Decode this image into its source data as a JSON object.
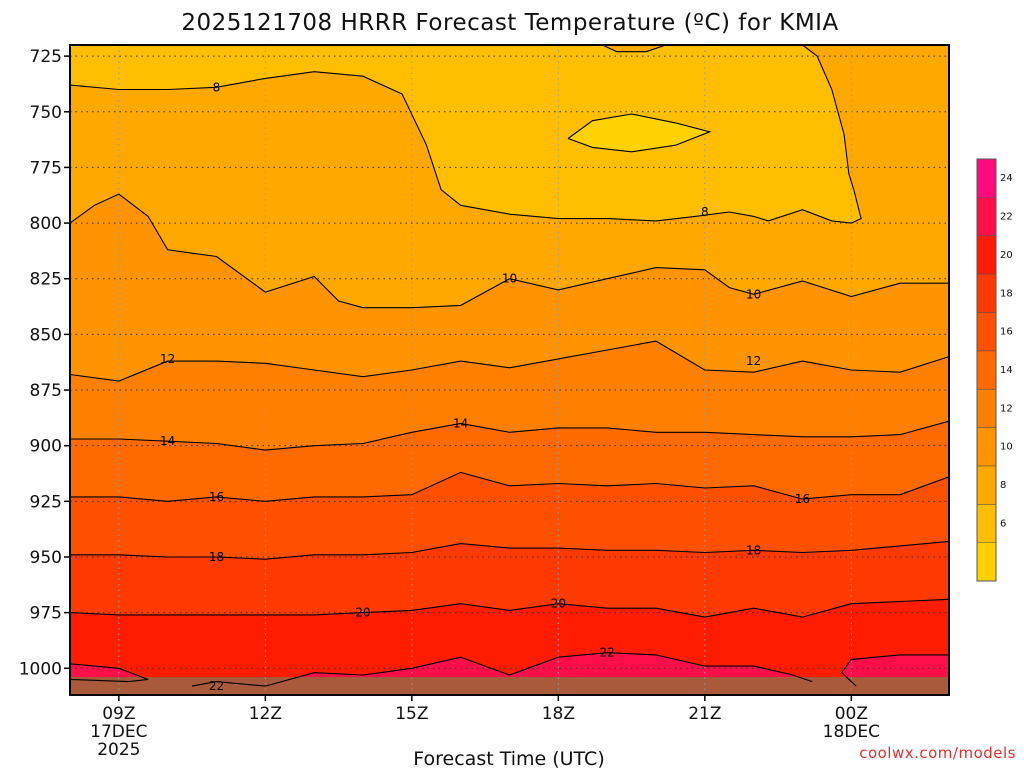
{
  "chart_data": {
    "type": "heatmap",
    "title": "2025121708 HRRR Forecast Temperature (ºC) for KMIA",
    "xlabel": "Forecast Time (UTC)",
    "ylabel": "",
    "y_scale": "pressure (hPa), inverted",
    "ylim": [
      1012,
      720
    ],
    "y_ticks": [
      725,
      750,
      775,
      800,
      825,
      850,
      875,
      900,
      925,
      950,
      975,
      1000
    ],
    "x_ticks": [
      {
        "hour": 9,
        "label": "09Z",
        "sub1": "17DEC",
        "sub2": "2025"
      },
      {
        "hour": 12,
        "label": "12Z",
        "sub1": "",
        "sub2": ""
      },
      {
        "hour": 15,
        "label": "15Z",
        "sub1": "",
        "sub2": ""
      },
      {
        "hour": 18,
        "label": "18Z",
        "sub1": "",
        "sub2": ""
      },
      {
        "hour": 21,
        "label": "21Z",
        "sub1": "",
        "sub2": ""
      },
      {
        "hour": 24,
        "label": "00Z",
        "sub1": "18DEC",
        "sub2": ""
      }
    ],
    "xlim": [
      8,
      26
    ],
    "grid": true,
    "colorbar": {
      "levels": [
        4,
        6,
        8,
        10,
        12,
        14,
        16,
        18,
        20,
        22,
        24,
        26
      ],
      "labels": [
        "6",
        "8",
        "10",
        "12",
        "14",
        "16",
        "18",
        "20",
        "22",
        "24"
      ],
      "colors": [
        "#ffd200",
        "#ffbf00",
        "#ffa800",
        "#ff9400",
        "#ff8000",
        "#ff6a00",
        "#ff5000",
        "#ff3a00",
        "#ff1c00",
        "#ff0e4a",
        "#ff0b7c"
      ]
    },
    "series": [
      {
        "level": 6,
        "label_at": [],
        "segments": [
          [
            [
              18.2,
              762
            ],
            [
              18.7,
              754
            ],
            [
              19.5,
              751
            ],
            [
              20.4,
              755
            ],
            [
              21.1,
              759
            ],
            [
              20.4,
              765
            ],
            [
              19.5,
              768
            ],
            [
              18.7,
              766
            ],
            [
              18.2,
              762
            ]
          ]
        ]
      },
      {
        "level": 8,
        "label_at": [
          [
            11.0,
            739
          ],
          [
            21.0,
            795
          ]
        ],
        "segments": [
          [
            [
              8,
              738
            ],
            [
              9,
              740
            ],
            [
              10,
              740
            ],
            [
              11,
              739
            ],
            [
              12,
              735
            ],
            [
              13,
              732
            ],
            [
              14,
              734
            ],
            [
              14.8,
              742
            ],
            [
              15.3,
              765
            ],
            [
              15.6,
              785
            ],
            [
              16,
              792
            ],
            [
              17,
              796
            ],
            [
              18,
              798
            ],
            [
              19,
              798
            ],
            [
              20,
              799
            ],
            [
              20.8,
              797
            ],
            [
              21.5,
              795
            ],
            [
              22,
              797
            ],
            [
              22.3,
              799
            ],
            [
              23,
              794
            ],
            [
              23.6,
              799
            ],
            [
              24,
              800
            ],
            [
              24.2,
              798
            ],
            [
              24.05,
              785
            ],
            [
              23.95,
              778
            ],
            [
              23.85,
              760
            ],
            [
              23.6,
              740
            ],
            [
              23.3,
              725
            ],
            [
              23,
              720
            ]
          ],
          [
            [
              18.9,
              720
            ],
            [
              19.2,
              723
            ],
            [
              19.8,
              723
            ],
            [
              20.2,
              720
            ]
          ]
        ]
      },
      {
        "level": 10,
        "label_at": [
          [
            17.0,
            825
          ],
          [
            22.0,
            832
          ]
        ],
        "segments": [
          [
            [
              8,
              800
            ],
            [
              8.5,
              792
            ],
            [
              9,
              787
            ],
            [
              9.6,
              797
            ],
            [
              10,
              812
            ],
            [
              11,
              815
            ],
            [
              12,
              831
            ],
            [
              13,
              824
            ],
            [
              13.5,
              835
            ],
            [
              14,
              838
            ],
            [
              15,
              838
            ],
            [
              16,
              837
            ],
            [
              17,
              825
            ],
            [
              18,
              830
            ],
            [
              19,
              825
            ],
            [
              20,
              820
            ],
            [
              21,
              821
            ],
            [
              21.5,
              829
            ],
            [
              22,
              832
            ],
            [
              23,
              826
            ],
            [
              24,
              833
            ],
            [
              25,
              827
            ],
            [
              26,
              827
            ]
          ]
        ]
      },
      {
        "level": 12,
        "label_at": [
          [
            10.0,
            861
          ],
          [
            22.0,
            862
          ]
        ],
        "segments": [
          [
            [
              8,
              868
            ],
            [
              9,
              871
            ],
            [
              10,
              862
            ],
            [
              11,
              862
            ],
            [
              12,
              863
            ],
            [
              13,
              866
            ],
            [
              14,
              869
            ],
            [
              15,
              866
            ],
            [
              16,
              862
            ],
            [
              17,
              865
            ],
            [
              18,
              861
            ],
            [
              19,
              857
            ],
            [
              20,
              853
            ],
            [
              21,
              866
            ],
            [
              22,
              867
            ],
            [
              23,
              862
            ],
            [
              24,
              866
            ],
            [
              25,
              867
            ],
            [
              26,
              860
            ]
          ]
        ]
      },
      {
        "level": 14,
        "label_at": [
          [
            10.0,
            898
          ],
          [
            16.0,
            890
          ]
        ],
        "segments": [
          [
            [
              8,
              897
            ],
            [
              9,
              897
            ],
            [
              10,
              898
            ],
            [
              11,
              899
            ],
            [
              12,
              902
            ],
            [
              13,
              900
            ],
            [
              14,
              899
            ],
            [
              15,
              894
            ],
            [
              16,
              890
            ],
            [
              17,
              894
            ],
            [
              18,
              892
            ],
            [
              19,
              892
            ],
            [
              20,
              894
            ],
            [
              21,
              894
            ],
            [
              22,
              895
            ],
            [
              23,
              896
            ],
            [
              24,
              896
            ],
            [
              25,
              895
            ],
            [
              26,
              889
            ]
          ]
        ]
      },
      {
        "level": 16,
        "label_at": [
          [
            11.0,
            923
          ],
          [
            23.0,
            924
          ]
        ],
        "segments": [
          [
            [
              8,
              923
            ],
            [
              9,
              923
            ],
            [
              10,
              925
            ],
            [
              11,
              923
            ],
            [
              12,
              925
            ],
            [
              13,
              923
            ],
            [
              14,
              923
            ],
            [
              15,
              922
            ],
            [
              16,
              912
            ],
            [
              17,
              918
            ],
            [
              18,
              917
            ],
            [
              19,
              918
            ],
            [
              20,
              917
            ],
            [
              21,
              919
            ],
            [
              22,
              918
            ],
            [
              23,
              924
            ],
            [
              24,
              922
            ],
            [
              25,
              922
            ],
            [
              26,
              914
            ]
          ]
        ]
      },
      {
        "level": 18,
        "label_at": [
          [
            11.0,
            950
          ],
          [
            22.0,
            947
          ]
        ],
        "segments": [
          [
            [
              8,
              949
            ],
            [
              9,
              949
            ],
            [
              10,
              950
            ],
            [
              11,
              950
            ],
            [
              12,
              951
            ],
            [
              13,
              949
            ],
            [
              14,
              949
            ],
            [
              15,
              948
            ],
            [
              16,
              944
            ],
            [
              17,
              946
            ],
            [
              18,
              946
            ],
            [
              19,
              947
            ],
            [
              20,
              947
            ],
            [
              21,
              948
            ],
            [
              22,
              947
            ],
            [
              23,
              948
            ],
            [
              24,
              947
            ],
            [
              25,
              945
            ],
            [
              26,
              943
            ]
          ]
        ]
      },
      {
        "level": 20,
        "label_at": [
          [
            14.0,
            975
          ],
          [
            18.0,
            971
          ]
        ],
        "segments": [
          [
            [
              8,
              975
            ],
            [
              9,
              976
            ],
            [
              10,
              976
            ],
            [
              11,
              976
            ],
            [
              12,
              976
            ],
            [
              13,
              976
            ],
            [
              14,
              975
            ],
            [
              15,
              974
            ],
            [
              16,
              971
            ],
            [
              17,
              974
            ],
            [
              18,
              971
            ],
            [
              19,
              973
            ],
            [
              20,
              973
            ],
            [
              21,
              977
            ],
            [
              22,
              973
            ],
            [
              23,
              977
            ],
            [
              24,
              971
            ],
            [
              25,
              970
            ],
            [
              26,
              969
            ]
          ]
        ]
      },
      {
        "level": 22,
        "label_at": [
          [
            11.0,
            1008
          ],
          [
            19.0,
            993
          ]
        ],
        "segments": [
          [
            [
              8,
              998
            ],
            [
              9,
              1000
            ],
            [
              9.6,
              1005
            ],
            [
              9.2,
              1006
            ],
            [
              8,
              1005
            ]
          ],
          [
            [
              10.5,
              1008
            ],
            [
              11,
              1006
            ],
            [
              12,
              1008
            ],
            [
              13,
              1002
            ],
            [
              14,
              1003
            ],
            [
              15,
              1000
            ],
            [
              16,
              995
            ],
            [
              17,
              1003
            ],
            [
              18,
              995
            ],
            [
              19,
              993
            ],
            [
              20,
              994
            ],
            [
              21,
              999
            ],
            [
              22,
              999
            ],
            [
              22.8,
              1003
            ],
            [
              23.2,
              1006
            ]
          ],
          [
            [
              26,
              994
            ],
            [
              25,
              994
            ],
            [
              24,
              996
            ],
            [
              23.8,
              1002
            ],
            [
              24.1,
              1008
            ]
          ]
        ]
      }
    ]
  },
  "credit": "coolwx.com/models"
}
